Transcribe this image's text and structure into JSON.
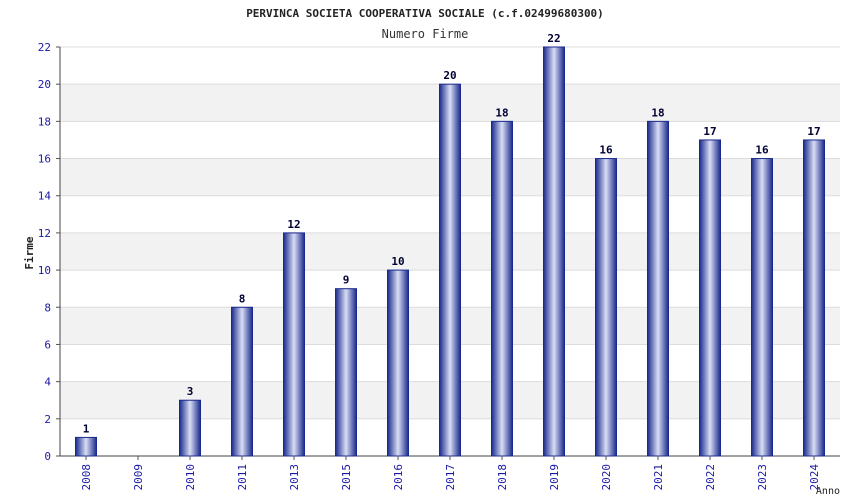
{
  "chart_data": {
    "type": "bar",
    "title": "PERVINCA SOCIETA COOPERATIVA SOCIALE (c.f.02499680300)",
    "subtitle": "Numero Firme",
    "xlabel": "Anno",
    "ylabel": "Firme",
    "categories": [
      "2008",
      "2009",
      "2010",
      "2011",
      "2013",
      "2015",
      "2016",
      "2017",
      "2018",
      "2019",
      "2020",
      "2021",
      "2022",
      "2023",
      "2024"
    ],
    "values": [
      1,
      0,
      3,
      8,
      12,
      9,
      10,
      20,
      18,
      22,
      16,
      18,
      17,
      16,
      17
    ],
    "ylim": [
      0,
      22
    ],
    "yticks": [
      0,
      2,
      4,
      6,
      8,
      10,
      12,
      14,
      16,
      18,
      20,
      22
    ],
    "grid": true,
    "colors": {
      "bar_edge": "#1a2a8c",
      "bar_center": "#d8ddf4",
      "band": "#f2f2f2",
      "tick_text": "#1a1aa6"
    }
  }
}
